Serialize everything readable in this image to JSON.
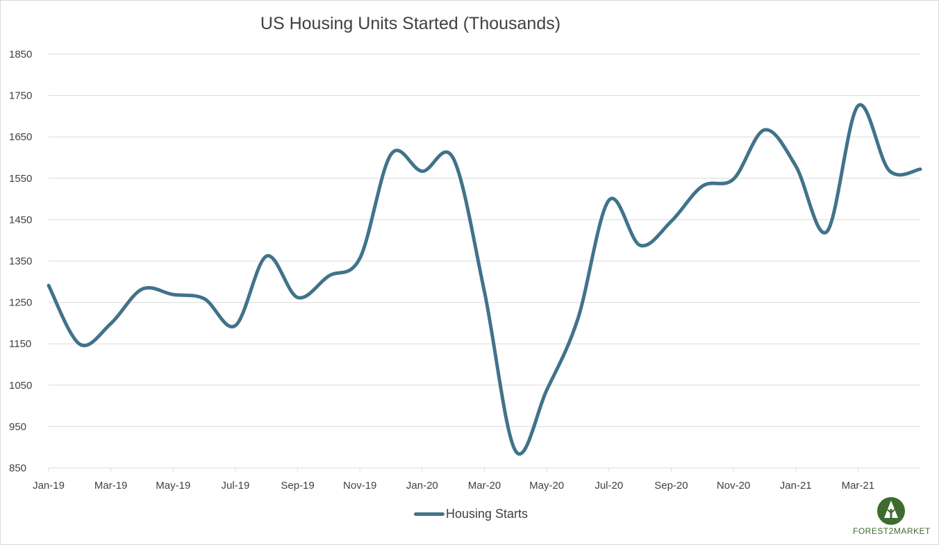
{
  "chart_data": {
    "type": "line",
    "title": "US Housing Units Started (Thousands)",
    "xlabel": "",
    "ylabel": "",
    "ylim": [
      850,
      1850
    ],
    "yticks": [
      850,
      950,
      1050,
      1150,
      1250,
      1350,
      1450,
      1550,
      1650,
      1750,
      1850
    ],
    "x": [
      "Jan-19",
      "Feb-19",
      "Mar-19",
      "Apr-19",
      "May-19",
      "Jun-19",
      "Jul-19",
      "Aug-19",
      "Sep-19",
      "Oct-19",
      "Nov-19",
      "Dec-19",
      "Jan-20",
      "Feb-20",
      "Mar-20",
      "Apr-20",
      "May-20",
      "Jun-20",
      "Jul-20",
      "Aug-20",
      "Sep-20",
      "Oct-20",
      "Nov-20",
      "Dec-20",
      "Jan-21",
      "Feb-21",
      "Mar-21",
      "Apr-21",
      "May-21"
    ],
    "xtick_labels": [
      "Jan-19",
      "Mar-19",
      "May-19",
      "Jul-19",
      "Sep-19",
      "Nov-19",
      "Jan-20",
      "Mar-20",
      "May-20",
      "Jul-20",
      "Sep-20",
      "Nov-20",
      "Jan-21",
      "Mar-21"
    ],
    "series": [
      {
        "name": "Housing Starts",
        "color": "#41738a",
        "values": [
          1291,
          1149,
          1199,
          1282,
          1269,
          1259,
          1194,
          1362,
          1262,
          1314,
          1357,
          1608,
          1567,
          1598,
          1276,
          891,
          1038,
          1210,
          1497,
          1388,
          1446,
          1531,
          1548,
          1667,
          1580,
          1421,
          1725,
          1569,
          1572
        ]
      }
    ],
    "grid": true,
    "legend": "bottom",
    "colors": {
      "line": "#41738a",
      "grid": "#d9d9d9",
      "text": "#404040"
    }
  },
  "logo": {
    "text": "FOREST2MARKET",
    "color": "#3e6b2f"
  }
}
